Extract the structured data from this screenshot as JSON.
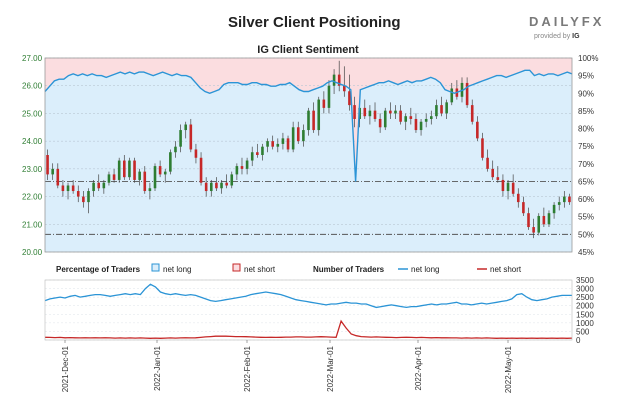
{
  "title": "Silver Client Positioning",
  "logo": {
    "brand": "DAILYFX",
    "provided_by": "provided by",
    "partner": "IG"
  },
  "chart_data": [
    {
      "type": "candlestick+line",
      "title": "IG Client Sentiment",
      "left_axis": {
        "ticks": [
          "27.00",
          "26.00",
          "25.00",
          "24.00",
          "23.00",
          "22.00",
          "21.00",
          "20.00"
        ],
        "range": [
          20.0,
          27.0
        ],
        "color": "#2e7d32"
      },
      "right_axis": {
        "ticks": [
          "100%",
          "95%",
          "90%",
          "85%",
          "80%",
          "75%",
          "70%",
          "65%",
          "60%",
          "55%",
          "50%",
          "45%"
        ],
        "range": [
          45,
          100
        ]
      },
      "reference_lines": [
        {
          "label": "65%",
          "value": 65
        },
        {
          "label": "50%",
          "value": 50
        }
      ],
      "colors": {
        "long_fill": "#dbeefb",
        "short_fill": "#fbdde0",
        "net_long_line": "#2b94d6",
        "up_candle": "#2e7d32",
        "down_candle": "#c62828"
      },
      "net_long_pct": [
        90.5,
        92,
        93.5,
        94,
        94,
        95,
        95.5,
        95,
        95.5,
        95,
        95.5,
        95,
        95,
        94.5,
        95,
        95.5,
        96,
        95.5,
        96,
        95.5,
        96,
        96,
        95.5,
        95,
        95.5,
        96,
        95.5,
        95,
        95.5,
        95,
        95,
        94.5,
        93,
        91.5,
        90.5,
        90,
        90.5,
        91,
        92.5,
        93,
        93,
        93,
        92.5,
        92.5,
        93,
        93,
        92.5,
        92.5,
        92,
        92,
        92.5,
        92.5,
        93,
        92,
        91,
        90.5,
        90.5,
        91,
        91.5,
        92,
        93,
        93.5,
        93,
        92.5,
        92,
        91,
        65,
        91,
        91.5,
        92,
        92.5,
        93,
        93,
        93.5,
        93,
        92.5,
        93,
        93.5,
        93,
        93.5,
        93.5,
        94,
        94.5,
        94,
        93,
        91,
        90.5,
        90,
        90.5,
        91,
        92,
        92.5,
        93,
        93.5,
        94,
        94.5,
        95,
        95,
        94.5,
        95,
        95.5,
        96,
        96.5,
        96.5,
        95,
        95.5,
        95,
        95.5,
        95.5,
        95,
        95.5,
        96,
        95.5
      ],
      "candles_ohlc": [
        [
          23.5,
          23.7,
          22.6,
          22.8
        ],
        [
          22.8,
          23.2,
          22.6,
          23.0
        ],
        [
          23.0,
          23.2,
          22.3,
          22.4
        ],
        [
          22.4,
          22.6,
          22.0,
          22.2
        ],
        [
          22.2,
          22.5,
          21.9,
          22.4
        ],
        [
          22.4,
          22.6,
          22.1,
          22.2
        ],
        [
          22.2,
          22.4,
          21.8,
          22.0
        ],
        [
          22.0,
          22.2,
          21.6,
          21.8
        ],
        [
          21.8,
          22.3,
          21.4,
          22.2
        ],
        [
          22.2,
          22.6,
          22.0,
          22.5
        ],
        [
          22.5,
          22.8,
          22.2,
          22.3
        ],
        [
          22.3,
          22.6,
          22.1,
          22.5
        ],
        [
          22.5,
          22.9,
          22.4,
          22.8
        ],
        [
          22.8,
          23.0,
          22.5,
          22.6
        ],
        [
          22.6,
          23.4,
          22.5,
          23.3
        ],
        [
          23.3,
          23.5,
          22.6,
          22.7
        ],
        [
          22.7,
          23.4,
          22.6,
          23.3
        ],
        [
          23.3,
          23.4,
          22.5,
          22.6
        ],
        [
          22.6,
          23.0,
          22.4,
          22.9
        ],
        [
          22.9,
          23.1,
          22.1,
          22.2
        ],
        [
          22.2,
          22.5,
          21.9,
          22.3
        ],
        [
          22.3,
          23.2,
          22.2,
          23.1
        ],
        [
          23.1,
          23.3,
          22.7,
          22.8
        ],
        [
          22.8,
          23.0,
          22.5,
          22.9
        ],
        [
          22.9,
          23.7,
          22.8,
          23.6
        ],
        [
          23.6,
          24.0,
          23.4,
          23.8
        ],
        [
          23.8,
          24.6,
          23.6,
          24.4
        ],
        [
          24.4,
          24.7,
          24.1,
          24.6
        ],
        [
          24.6,
          24.8,
          23.6,
          23.7
        ],
        [
          23.7,
          23.9,
          23.2,
          23.4
        ],
        [
          23.4,
          23.6,
          22.4,
          22.5
        ],
        [
          22.5,
          22.7,
          22.0,
          22.2
        ],
        [
          22.2,
          22.6,
          22.0,
          22.5
        ],
        [
          22.5,
          22.7,
          22.2,
          22.3
        ],
        [
          22.3,
          22.6,
          22.1,
          22.5
        ],
        [
          22.5,
          22.8,
          22.3,
          22.4
        ],
        [
          22.4,
          22.9,
          22.3,
          22.8
        ],
        [
          22.8,
          23.2,
          22.6,
          23.1
        ],
        [
          23.1,
          23.4,
          22.8,
          23.0
        ],
        [
          23.0,
          23.4,
          22.8,
          23.3
        ],
        [
          23.3,
          23.8,
          23.1,
          23.6
        ],
        [
          23.6,
          23.9,
          23.4,
          23.5
        ],
        [
          23.5,
          23.9,
          23.3,
          23.8
        ],
        [
          23.8,
          24.1,
          23.6,
          24.0
        ],
        [
          24.0,
          24.2,
          23.7,
          23.8
        ],
        [
          23.8,
          24.1,
          23.6,
          23.9
        ],
        [
          23.9,
          24.3,
          23.7,
          24.1
        ],
        [
          24.1,
          24.2,
          23.6,
          23.7
        ],
        [
          23.7,
          24.7,
          23.6,
          24.5
        ],
        [
          24.5,
          24.7,
          23.9,
          24.0
        ],
        [
          24.0,
          24.6,
          23.8,
          24.4
        ],
        [
          24.4,
          25.2,
          24.2,
          25.1
        ],
        [
          25.1,
          25.4,
          24.3,
          24.4
        ],
        [
          24.4,
          25.6,
          24.2,
          25.5
        ],
        [
          25.5,
          25.8,
          25.0,
          25.2
        ],
        [
          25.2,
          26.2,
          25.0,
          26.0
        ],
        [
          26.0,
          26.6,
          25.7,
          26.4
        ],
        [
          26.4,
          26.9,
          25.8,
          26.0
        ],
        [
          26.0,
          26.7,
          25.6,
          25.8
        ],
        [
          25.8,
          26.4,
          25.1,
          25.3
        ],
        [
          25.3,
          25.6,
          24.5,
          24.8
        ],
        [
          24.8,
          25.4,
          24.5,
          25.2
        ],
        [
          25.2,
          25.5,
          24.8,
          24.9
        ],
        [
          24.9,
          25.3,
          24.6,
          25.1
        ],
        [
          25.1,
          25.4,
          24.7,
          24.8
        ],
        [
          24.8,
          25.0,
          24.3,
          24.5
        ],
        [
          24.5,
          25.2,
          24.4,
          25.1
        ],
        [
          25.1,
          25.4,
          24.8,
          25.0
        ],
        [
          25.0,
          25.3,
          24.8,
          25.1
        ],
        [
          25.1,
          25.3,
          24.6,
          24.7
        ],
        [
          24.7,
          25.0,
          24.4,
          24.9
        ],
        [
          24.9,
          25.2,
          24.6,
          24.8
        ],
        [
          24.8,
          25.0,
          24.3,
          24.4
        ],
        [
          24.4,
          24.8,
          24.2,
          24.7
        ],
        [
          24.7,
          25.0,
          24.5,
          24.8
        ],
        [
          24.8,
          25.1,
          24.6,
          24.9
        ],
        [
          24.9,
          25.5,
          24.8,
          25.3
        ],
        [
          25.3,
          25.6,
          24.9,
          25.0
        ],
        [
          25.0,
          25.5,
          24.8,
          25.4
        ],
        [
          25.4,
          26.1,
          25.3,
          25.9
        ],
        [
          25.9,
          26.2,
          25.5,
          25.6
        ],
        [
          25.6,
          26.3,
          25.4,
          26.1
        ],
        [
          26.1,
          26.3,
          25.2,
          25.3
        ],
        [
          25.3,
          25.5,
          24.6,
          24.7
        ],
        [
          24.7,
          24.9,
          24.0,
          24.1
        ],
        [
          24.1,
          24.3,
          23.3,
          23.4
        ],
        [
          23.4,
          23.7,
          22.9,
          23.0
        ],
        [
          23.0,
          23.3,
          22.6,
          22.7
        ],
        [
          22.7,
          23.1,
          22.5,
          22.6
        ],
        [
          22.6,
          22.8,
          22.0,
          22.2
        ],
        [
          22.2,
          22.6,
          21.9,
          22.5
        ],
        [
          22.5,
          22.8,
          22.0,
          22.1
        ],
        [
          22.1,
          22.3,
          21.6,
          21.8
        ],
        [
          21.8,
          22.0,
          21.3,
          21.4
        ],
        [
          21.4,
          21.6,
          20.8,
          20.9
        ],
        [
          20.9,
          21.2,
          20.5,
          20.7
        ],
        [
          20.7,
          21.4,
          20.6,
          21.3
        ],
        [
          21.3,
          21.6,
          20.9,
          21.0
        ],
        [
          21.0,
          21.5,
          20.9,
          21.4
        ],
        [
          21.4,
          21.8,
          21.2,
          21.7
        ],
        [
          21.7,
          22.0,
          21.5,
          21.8
        ],
        [
          21.8,
          22.2,
          21.6,
          22.0
        ],
        [
          22.0,
          22.1,
          21.7,
          21.8
        ]
      ]
    },
    {
      "type": "line",
      "legend": {
        "pct_label": "Percentage of Traders",
        "pct_long": "net long",
        "pct_short": "net short",
        "num_label": "Number of Traders",
        "num_long": "net long",
        "num_short": "net short"
      },
      "right_axis": {
        "ticks": [
          "3500",
          "3000",
          "2500",
          "2000",
          "1500",
          "1000",
          "500",
          "0"
        ],
        "range": [
          0,
          3500
        ]
      },
      "x_ticks": [
        "2021-Dec-01",
        "2022-Jan-01",
        "2022-Feb-01",
        "2022-Mar-01",
        "2022-Apr-01",
        "2022-May-01"
      ],
      "series": [
        {
          "name": "net long",
          "color": "#2b94d6",
          "values": [
            2300,
            2400,
            2450,
            2500,
            2450,
            2550,
            2600,
            2500,
            2550,
            2600,
            2650,
            2650,
            2600,
            2550,
            2600,
            2650,
            2700,
            2650,
            2700,
            2650,
            3000,
            3250,
            3100,
            2800,
            2700,
            2650,
            2700,
            2650,
            2600,
            2650,
            2600,
            2500,
            2400,
            2300,
            2250,
            2300,
            2350,
            2400,
            2450,
            2500,
            2550,
            2650,
            2700,
            2750,
            2800,
            2750,
            2700,
            2650,
            2550,
            2450,
            2350,
            2300,
            2250,
            2200,
            2150,
            2100,
            2050,
            2100,
            2100,
            2150,
            2200,
            2150,
            2150,
            2100,
            2100,
            2000,
            1900,
            1950,
            2000,
            2050,
            2000,
            1950,
            1900,
            1950,
            1950,
            2000,
            2050,
            2100,
            2050,
            2100,
            2100,
            2150,
            2200,
            2100,
            2100,
            2050,
            2100,
            2150,
            2100,
            2150,
            2200,
            2250,
            2300,
            2400,
            2650,
            2700,
            2500,
            2350,
            2300,
            2350,
            2400,
            2500,
            2550,
            2600,
            2600,
            2600
          ]
        },
        {
          "name": "net short",
          "color": "#c62828",
          "values": [
            160,
            150,
            140,
            150,
            130,
            140,
            130,
            120,
            130,
            120,
            130,
            120,
            130,
            120,
            110,
            120,
            110,
            120,
            110,
            120,
            110,
            100,
            110,
            100,
            110,
            120,
            110,
            120,
            130,
            120,
            130,
            150,
            180,
            200,
            220,
            230,
            220,
            210,
            200,
            200,
            190,
            180,
            170,
            160,
            150,
            160,
            150,
            160,
            170,
            170,
            180,
            180,
            170,
            170,
            180,
            190,
            180,
            170,
            160,
            1100,
            700,
            350,
            250,
            200,
            180,
            170,
            180,
            170,
            160,
            150,
            140,
            150,
            160,
            150,
            140,
            150,
            140,
            130,
            140,
            130,
            130,
            120,
            120,
            110,
            120,
            110,
            120,
            110,
            120,
            110,
            100,
            110,
            100,
            110,
            100,
            110,
            100,
            110,
            100,
            110,
            100,
            110,
            100,
            110,
            100,
            110
          ]
        }
      ]
    }
  ]
}
